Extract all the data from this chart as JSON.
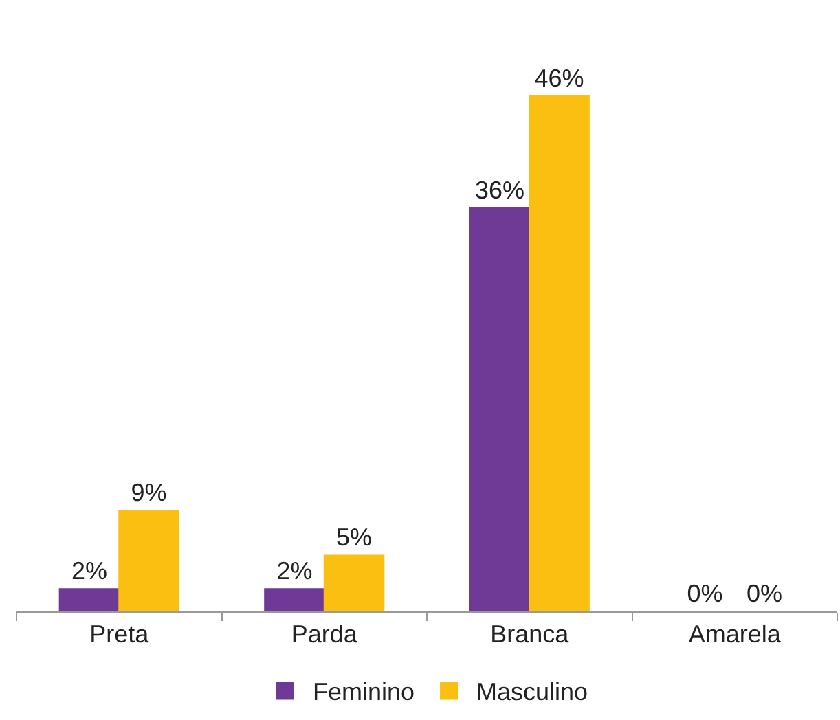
{
  "chart_data": {
    "type": "bar",
    "categories": [
      "Preta",
      "Parda",
      "Branca",
      "Amarela"
    ],
    "series": [
      {
        "name": "Feminino",
        "color": "#6f3996",
        "values": [
          2,
          2,
          36,
          0
        ],
        "value_labels": [
          "2%",
          "2%",
          "36%",
          "0%"
        ]
      },
      {
        "name": "Masculino",
        "color": "#fbbf12",
        "values": [
          9,
          5,
          46,
          0
        ],
        "value_labels": [
          "9%",
          "5%",
          "46%",
          "0%"
        ]
      }
    ],
    "legend": "bottom"
  }
}
